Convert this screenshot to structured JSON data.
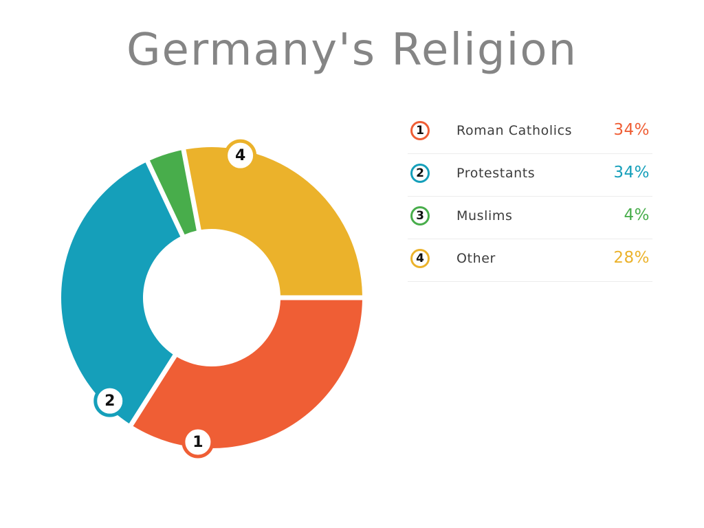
{
  "chart_data": {
    "type": "pie",
    "variant": "donut",
    "title": "Germany's Religion",
    "slices": [
      {
        "marker": "1",
        "label": "Roman Catholics",
        "value": 34,
        "value_label": "34%",
        "color": "#ef5e35"
      },
      {
        "marker": "2",
        "label": "Protestants",
        "value": 34,
        "value_label": "34%",
        "color": "#159fba"
      },
      {
        "marker": "3",
        "label": "Muslims",
        "value": 4,
        "value_label": "4%",
        "color": "#48ad4b"
      },
      {
        "marker": "4",
        "label": "Other",
        "value": 28,
        "value_label": "28%",
        "color": "#ebb22b"
      }
    ],
    "legend_position": "right"
  }
}
